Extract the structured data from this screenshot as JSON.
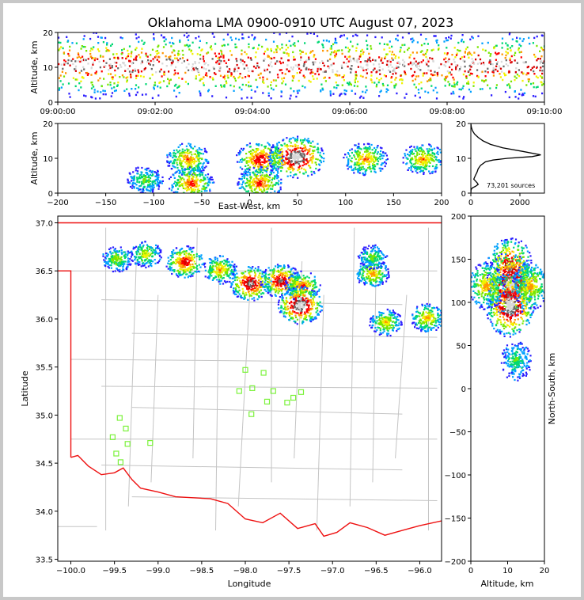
{
  "chart_data": [
    {
      "type": "heatmap",
      "panel": "altitude-time",
      "title": "Oklahoma LMA 0900-0910 UTC August 07, 2023",
      "xlabel": "",
      "ylabel": "Altitude, km",
      "x_ticks": [
        "09:00:00",
        "09:02:00",
        "09:04:00",
        "09:06:00",
        "09:08:00",
        "09:10:00"
      ],
      "y_ticks": [
        "0",
        "10",
        "20"
      ],
      "xlim": [
        "09:00:00",
        "09:10:00"
      ],
      "ylim": [
        0,
        20
      ],
      "density_band": {
        "core_altitude_km": 10.5,
        "top_km": 20,
        "bottom_km": 1
      }
    },
    {
      "type": "heatmap",
      "panel": "east-west-altitude",
      "xlabel": "East-West, km",
      "ylabel": "Altitude, km",
      "x_ticks": [
        "−200",
        "−150",
        "−100",
        "−50",
        "0",
        "50",
        "100",
        "150",
        "200"
      ],
      "y_ticks": [
        "0",
        "10",
        "20"
      ],
      "xlim": [
        -200,
        200
      ],
      "ylim": [
        0,
        20
      ],
      "cells": [
        {
          "x": -65,
          "alt": 10,
          "intensity": 0.55
        },
        {
          "x": -62,
          "alt": 3,
          "intensity": 0.6
        },
        {
          "x": -110,
          "alt": 4,
          "intensity": 0.3
        },
        {
          "x": 10,
          "alt": 10,
          "intensity": 0.7
        },
        {
          "x": 10,
          "alt": 3,
          "intensity": 0.6
        },
        {
          "x": 48,
          "alt": 10.5,
          "intensity": 1.0
        },
        {
          "x": 120,
          "alt": 10,
          "intensity": 0.55
        },
        {
          "x": 180,
          "alt": 10,
          "intensity": 0.5
        }
      ]
    },
    {
      "type": "line",
      "panel": "altitude-histogram",
      "x_ticks": [
        "0",
        "2000"
      ],
      "y_ticks": [
        "0",
        "10",
        "20"
      ],
      "xlim": [
        0,
        3000
      ],
      "ylim": [
        0,
        20
      ],
      "annotation": "73,201 sources",
      "profile": [
        [
          0,
          20
        ],
        [
          20,
          19
        ],
        [
          60,
          18
        ],
        [
          150,
          17
        ],
        [
          300,
          16
        ],
        [
          500,
          15
        ],
        [
          800,
          14
        ],
        [
          1300,
          13
        ],
        [
          2100,
          12
        ],
        [
          2850,
          11
        ],
        [
          2500,
          10.5
        ],
        [
          1500,
          10
        ],
        [
          900,
          9.5
        ],
        [
          600,
          9
        ],
        [
          400,
          8
        ],
        [
          300,
          7
        ],
        [
          250,
          6
        ],
        [
          180,
          5
        ],
        [
          120,
          4
        ],
        [
          250,
          3
        ],
        [
          300,
          2.5
        ],
        [
          200,
          2
        ],
        [
          60,
          1.5
        ],
        [
          10,
          1
        ],
        [
          0,
          0
        ]
      ]
    },
    {
      "type": "heatmap",
      "panel": "plan-view",
      "xlabel": "Longitude",
      "ylabel": "Latitude",
      "x_ticks": [
        "−100.0",
        "−99.5",
        "−99.0",
        "−98.5",
        "−98.0",
        "−97.5",
        "−97.0",
        "−96.5",
        "−96.0"
      ],
      "y_ticks": [
        "33.5",
        "34.0",
        "34.5",
        "35.0",
        "35.5",
        "36.0",
        "36.5",
        "37.0"
      ],
      "xlim": [
        -100.15,
        -95.75
      ],
      "ylim": [
        33.48,
        37.07
      ],
      "stations": [
        {
          "lon": -99.44,
          "lat": 34.97
        },
        {
          "lon": -99.37,
          "lat": 34.86
        },
        {
          "lon": -99.52,
          "lat": 34.77
        },
        {
          "lon": -99.35,
          "lat": 34.7
        },
        {
          "lon": -99.48,
          "lat": 34.6
        },
        {
          "lon": -99.43,
          "lat": 34.51
        },
        {
          "lon": -99.09,
          "lat": 34.71
        },
        {
          "lon": -98.0,
          "lat": 35.47
        },
        {
          "lon": -97.79,
          "lat": 35.44
        },
        {
          "lon": -98.07,
          "lat": 35.25
        },
        {
          "lon": -97.92,
          "lat": 35.28
        },
        {
          "lon": -97.68,
          "lat": 35.25
        },
        {
          "lon": -97.36,
          "lat": 35.24
        },
        {
          "lon": -97.45,
          "lat": 35.18
        },
        {
          "lon": -97.75,
          "lat": 35.14
        },
        {
          "lon": -97.52,
          "lat": 35.13
        },
        {
          "lon": -97.93,
          "lat": 35.01
        }
      ],
      "cells": [
        {
          "lon": -99.48,
          "lat": 36.63,
          "intensity": 0.35
        },
        {
          "lon": -99.15,
          "lat": 36.68,
          "intensity": 0.4
        },
        {
          "lon": -98.7,
          "lat": 36.6,
          "intensity": 0.7
        },
        {
          "lon": -98.3,
          "lat": 36.52,
          "intensity": 0.5
        },
        {
          "lon": -97.95,
          "lat": 36.38,
          "intensity": 0.85
        },
        {
          "lon": -97.6,
          "lat": 36.4,
          "intensity": 0.8
        },
        {
          "lon": -97.35,
          "lat": 36.35,
          "intensity": 0.6
        },
        {
          "lon": -97.38,
          "lat": 36.15,
          "intensity": 1.0
        },
        {
          "lon": -96.55,
          "lat": 36.48,
          "intensity": 0.5
        },
        {
          "lon": -96.55,
          "lat": 36.65,
          "intensity": 0.3
        },
        {
          "lon": -96.4,
          "lat": 35.97,
          "intensity": 0.45
        },
        {
          "lon": -95.92,
          "lat": 36.02,
          "intensity": 0.5
        }
      ]
    },
    {
      "type": "heatmap",
      "panel": "altitude-north-south",
      "xlabel": "Altitude, km",
      "ylabel": "North-South, km",
      "x_ticks": [
        "0",
        "10",
        "20"
      ],
      "y_ticks": [
        "200",
        "150",
        "100",
        "50",
        "0",
        "−50",
        "−100",
        "−150",
        "−200"
      ],
      "xlim": [
        0,
        20
      ],
      "ylim": [
        -200,
        200
      ],
      "cells": [
        {
          "alt": 10.5,
          "ns": 142,
          "intensity": 0.85
        },
        {
          "alt": 10.5,
          "ns": 122,
          "intensity": 1.0
        },
        {
          "alt": 10.5,
          "ns": 98,
          "intensity": 1.0
        },
        {
          "alt": 4,
          "ns": 120,
          "intensity": 0.5
        },
        {
          "alt": 16,
          "ns": 120,
          "intensity": 0.5
        },
        {
          "alt": 12,
          "ns": 33,
          "intensity": 0.25
        }
      ]
    }
  ],
  "colors": {
    "density": [
      "#2a1cff",
      "#00a0ff",
      "#00d873",
      "#78e600",
      "#f2f200",
      "#ff9600",
      "#ff0000",
      "#d80000",
      "#6a6a6a",
      "#d8d8d8"
    ],
    "state_border": "#ee1111",
    "counties": "#c4c4c4",
    "station": "#7cf23c",
    "profile": "#000000"
  }
}
